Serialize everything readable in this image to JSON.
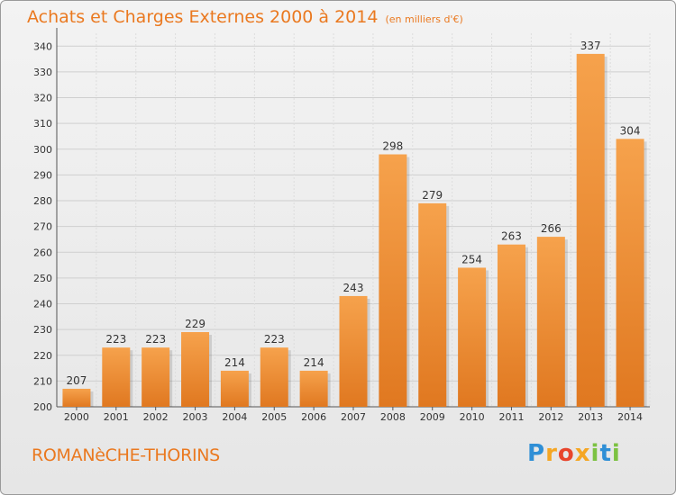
{
  "title": "Achats et Charges Externes 2000 à 2014",
  "unit": "(en milliers d'€)",
  "commune": "ROMANèCHE-THORINS",
  "logo": {
    "letters": [
      "P",
      "r",
      "o",
      "x",
      "i",
      "t",
      "i"
    ],
    "colors": [
      "#2f8fd6",
      "#f5a623",
      "#e8452c",
      "#f5a623",
      "#7cc242",
      "#2f8fd6",
      "#7cc242"
    ]
  },
  "colors": {
    "bar_top": "#f6a24c",
    "bar_bottom": "#e07820",
    "accent": "#ea7920"
  },
  "chart_data": {
    "type": "bar",
    "categories": [
      "2000",
      "2001",
      "2002",
      "2003",
      "2004",
      "2005",
      "2006",
      "2007",
      "2008",
      "2009",
      "2010",
      "2011",
      "2012",
      "2013",
      "2014"
    ],
    "values": [
      207,
      223,
      223,
      229,
      214,
      223,
      214,
      243,
      298,
      279,
      254,
      263,
      266,
      337,
      304
    ],
    "ylim": [
      200,
      345
    ],
    "yticks": [
      200,
      210,
      220,
      230,
      240,
      250,
      260,
      270,
      280,
      290,
      300,
      310,
      320,
      330,
      340
    ],
    "grid": true
  }
}
